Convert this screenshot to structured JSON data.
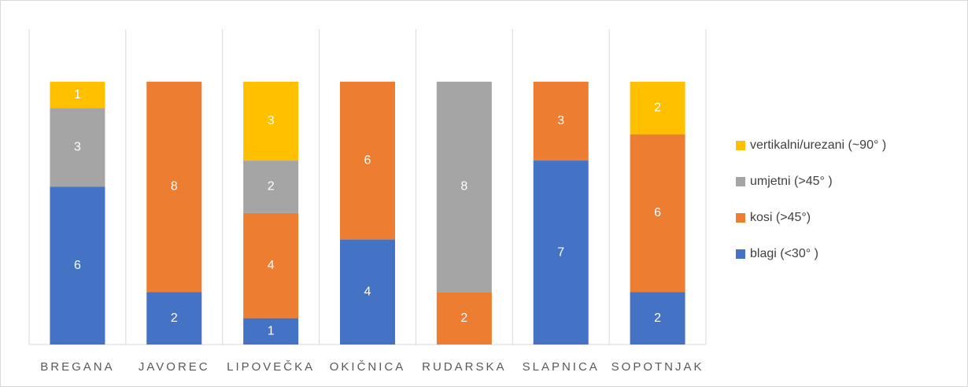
{
  "chart_data": {
    "type": "stacked_bar",
    "categories": [
      "BREGANA",
      "JAVOREC",
      "LIPOVEČKA",
      "OKIČNICA",
      "RUDARSKA",
      "SLAPNICA",
      "SOPOTNJAK"
    ],
    "series": [
      {
        "name": "blagi (<30° )",
        "color": "#4472c4",
        "values": [
          6,
          2,
          1,
          4,
          null,
          7,
          2
        ]
      },
      {
        "name": "kosi (>45°)",
        "color": "#ed7d31",
        "values": [
          null,
          8,
          4,
          6,
          2,
          3,
          6
        ]
      },
      {
        "name": "umjetni (>45° )",
        "color": "#a5a5a5",
        "values": [
          3,
          null,
          2,
          null,
          8,
          null,
          null
        ]
      },
      {
        "name": "vertikalni/urezani (~90° )",
        "color": "#ffc000",
        "values": [
          1,
          null,
          3,
          null,
          null,
          null,
          2
        ]
      }
    ],
    "ylim": [
      0,
      12
    ],
    "legend": "right"
  }
}
